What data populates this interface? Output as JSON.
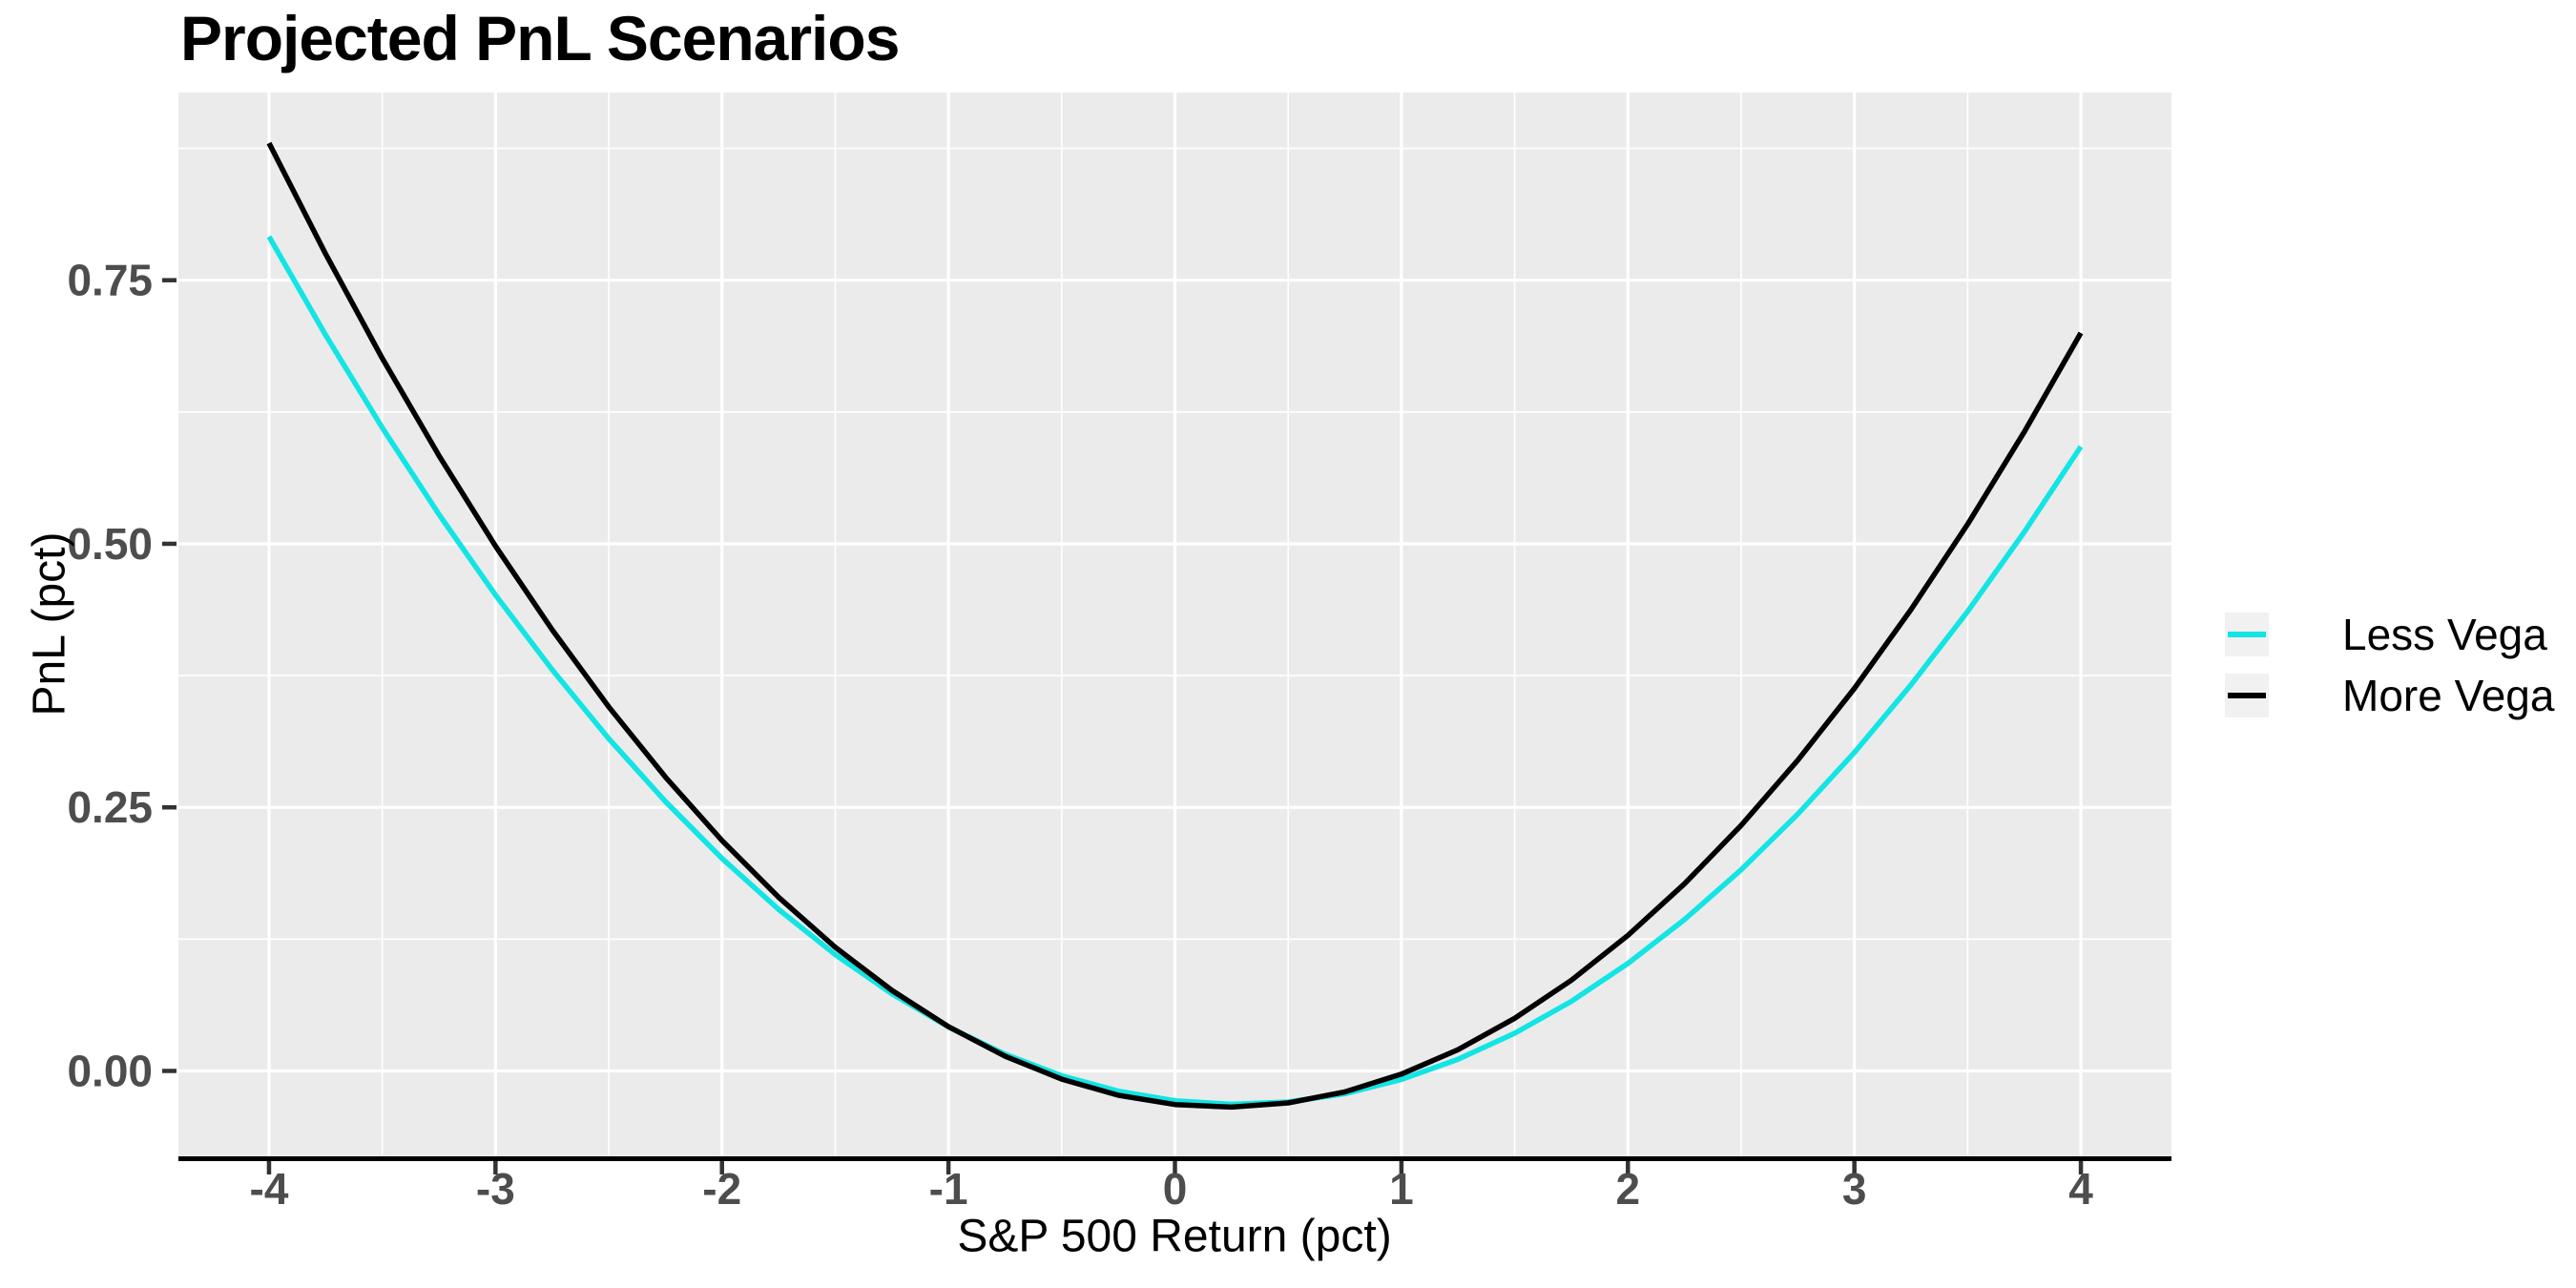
{
  "title": "Projected PnL Scenarios",
  "colors": {
    "panel_bg": "#EBEBEB",
    "grid": "#FFFFFF",
    "axis_line": "#000000",
    "tick": "#333333",
    "tick_label": "#4D4D4D",
    "legend_key_bg": "#F1F1F1",
    "less_vega": "#13E4E4",
    "more_vega": "#000000"
  },
  "chart_data": {
    "type": "line",
    "title": "Projected PnL Scenarios",
    "xlabel": "S&P 500 Return (pct)",
    "ylabel": "PnL (pct)",
    "xlim": [
      -4.4,
      4.4
    ],
    "ylim": [
      -0.081,
      0.928
    ],
    "grid": true,
    "legend_position": "right",
    "x_major_ticks": [
      -4,
      -3,
      -2,
      -1,
      0,
      1,
      2,
      3,
      4
    ],
    "x_tick_labels": [
      "-4",
      "-3",
      "-2",
      "-1",
      "0",
      "1",
      "2",
      "3",
      "4"
    ],
    "x_minor_ticks": [
      -3.5,
      -2.5,
      -1.5,
      -0.5,
      0.5,
      1.5,
      2.5,
      3.5
    ],
    "y_major_ticks": [
      0.0,
      0.25,
      0.5,
      0.75
    ],
    "y_tick_labels": [
      "0.00",
      "0.25",
      "0.50",
      "0.75"
    ],
    "y_minor_ticks": [
      0.125,
      0.375,
      0.625,
      0.875
    ],
    "x": [
      -4,
      -3.75,
      -3.5,
      -3.25,
      -3,
      -2.75,
      -2.5,
      -2.25,
      -2,
      -1.75,
      -1.5,
      -1.25,
      -1,
      -0.75,
      -0.5,
      -0.25,
      0,
      0.25,
      0.5,
      0.75,
      1,
      1.25,
      1.5,
      1.75,
      2,
      2.25,
      2.5,
      2.75,
      3,
      3.25,
      3.5,
      3.75,
      4
    ],
    "series": [
      {
        "name": "Less Vega",
        "color": "#13E4E4",
        "values": [
          0.7914,
          0.698,
          0.6102,
          0.528,
          0.4515,
          0.3806,
          0.3153,
          0.2556,
          0.2016,
          0.1532,
          0.1104,
          0.0732,
          0.0417,
          0.0158,
          -0.0045,
          -0.0192,
          -0.0282,
          -0.0316,
          -0.0294,
          -0.0216,
          -0.0081,
          0.011,
          0.0357,
          0.066,
          0.102,
          0.1436,
          0.1908,
          0.2436,
          0.3021,
          0.3662,
          0.4359,
          0.5112,
          0.5922
        ]
      },
      {
        "name": "More Vega",
        "color": "#000000",
        "values": [
          0.88,
          0.7749,
          0.6761,
          0.5838,
          0.4979,
          0.4185,
          0.3454,
          0.2788,
          0.2186,
          0.1648,
          0.1174,
          0.0765,
          0.042,
          0.0139,
          -0.0078,
          -0.0231,
          -0.0319,
          -0.0343,
          -0.0303,
          -0.0199,
          -0.003,
          0.0202,
          0.0499,
          0.086,
          0.1286,
          0.1775,
          0.2329,
          0.2947,
          0.3629,
          0.4376,
          0.5186,
          0.6061,
          0.7
        ]
      }
    ]
  }
}
